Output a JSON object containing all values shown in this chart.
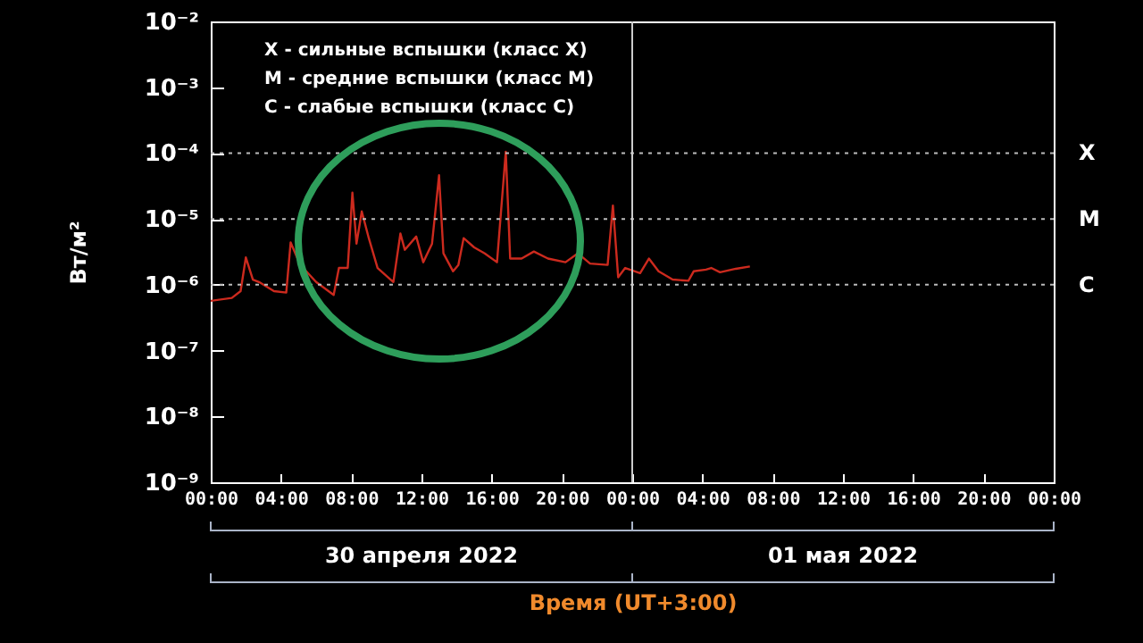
{
  "chart_data": {
    "type": "line",
    "xlabel": "Время (UT+3:00)",
    "ylabel": "Вт/м²",
    "annotations": [
      "X  - сильные вспышки (класс X)",
      "M  - средние вспышки (класс M)",
      "C  - слабые вспышки (класс C)",
      "30 апреля 2022",
      "01 мая 2022"
    ],
    "series": [
      {
        "color": "#cc2a1e",
        "x": [
          "2022-04-30T00:00",
          "2022-04-30T01:12",
          "2022-04-30T01:42",
          "2022-04-30T02:00",
          "2022-04-30T02:24",
          "2022-04-30T02:45",
          "2022-04-30T03:36",
          "2022-04-30T04:18",
          "2022-04-30T04:33",
          "2022-04-30T05:06",
          "2022-04-30T06:00",
          "2022-04-30T07:00",
          "2022-04-30T07:18",
          "2022-04-30T07:48",
          "2022-04-30T08:04",
          "2022-04-30T08:18",
          "2022-04-30T08:36",
          "2022-04-30T09:00",
          "2022-04-30T09:30",
          "2022-04-30T10:24",
          "2022-04-30T10:48",
          "2022-04-30T11:03",
          "2022-04-30T11:42",
          "2022-04-30T12:06",
          "2022-04-30T12:36",
          "2022-04-30T13:00",
          "2022-04-30T13:15",
          "2022-04-30T13:48",
          "2022-04-30T14:06",
          "2022-04-30T14:24",
          "2022-04-30T15:00",
          "2022-04-30T15:36",
          "2022-04-30T16:18",
          "2022-04-30T16:48",
          "2022-04-30T17:03",
          "2022-04-30T17:42",
          "2022-04-30T18:24",
          "2022-04-30T19:12",
          "2022-04-30T20:12",
          "2022-04-30T20:54",
          "2022-04-30T21:36",
          "2022-04-30T22:36",
          "2022-04-30T22:54",
          "2022-04-30T23:12",
          "2022-04-30T23:36",
          "2022-05-01T00:27",
          "2022-05-01T00:57",
          "2022-05-01T01:30",
          "2022-05-01T02:18",
          "2022-05-01T03:12",
          "2022-05-01T03:30",
          "2022-05-01T04:12",
          "2022-05-01T04:30",
          "2022-05-01T05:00",
          "2022-05-01T05:54",
          "2022-05-01T06:42"
        ],
        "values": [
          5.7e-07,
          6.3e-07,
          8e-07,
          2.6e-06,
          1.2e-06,
          1.1e-06,
          8e-07,
          7.6e-07,
          4.4e-06,
          2e-06,
          1.1e-06,
          7e-07,
          1.8e-06,
          1.8e-06,
          2.5e-05,
          4.2e-06,
          1.3e-05,
          5.1e-06,
          1.8e-06,
          1.1e-06,
          6e-06,
          3.4e-06,
          5.4e-06,
          2.2e-06,
          4.2e-06,
          4.6e-05,
          3e-06,
          1.6e-06,
          2e-06,
          5.1e-06,
          3.7e-06,
          3e-06,
          2.2e-06,
          0.000105,
          2.5e-06,
          2.5e-06,
          3.2e-06,
          2.5e-06,
          2.2e-06,
          3e-06,
          2.1e-06,
          2e-06,
          1.6e-05,
          1.3e-06,
          1.8e-06,
          1.5e-06,
          2.5e-06,
          1.6e-06,
          1.2e-06,
          1.15e-06,
          1.6e-06,
          1.7e-06,
          1.8e-06,
          1.55e-06,
          1.75e-06,
          1.9e-06
        ]
      }
    ],
    "log": true,
    "grid": false,
    "marker": "none",
    "line_style": "solid",
    "xlim": [
      "2022-04-30T00:00",
      "2022-05-02T00:00"
    ],
    "xticks": [
      {
        "value": "2022-04-30T00:00",
        "label": "00:00"
      },
      {
        "value": "2022-04-30T04:00",
        "label": "04:00"
      },
      {
        "value": "2022-04-30T08:00",
        "label": "08:00"
      },
      {
        "value": "2022-04-30T12:00",
        "label": "12:00"
      },
      {
        "value": "2022-04-30T16:00",
        "label": "16:00"
      },
      {
        "value": "2022-04-30T20:00",
        "label": "20:00"
      },
      {
        "value": "2022-05-01T00:00",
        "label": "00:00"
      },
      {
        "value": "2022-05-01T04:00",
        "label": "04:00"
      },
      {
        "value": "2022-05-01T08:00",
        "label": "08:00"
      },
      {
        "value": "2022-05-01T12:00",
        "label": "12:00"
      },
      {
        "value": "2022-05-01T16:00",
        "label": "16:00"
      },
      {
        "value": "2022-05-01T20:00",
        "label": "20:00"
      },
      {
        "value": "2022-05-02T00:00",
        "label": "00:00"
      }
    ],
    "ylim": [
      1e-09,
      0.01
    ],
    "yticks": [
      {
        "value": 1e-09,
        "label": "10⁻⁹"
      },
      {
        "value": 1e-08,
        "label": "10⁻⁸"
      },
      {
        "value": 1e-07,
        "label": "10⁻⁷"
      },
      {
        "value": 1e-06,
        "label": "10⁻⁶"
      },
      {
        "value": 1e-05,
        "label": "10⁻⁵"
      },
      {
        "value": 0.0001,
        "label": "10⁻⁴"
      },
      {
        "value": 0.001,
        "label": "10⁻³"
      },
      {
        "value": 0.01,
        "label": "10⁻²"
      }
    ],
    "ref_lines": [
      {
        "axis": "y",
        "value": 0.0001,
        "label": "X",
        "color": "#bbbbbb",
        "line_style": "dotted"
      },
      {
        "axis": "y",
        "value": 1e-05,
        "label": "M",
        "color": "#bbbbbb",
        "line_style": "dotted"
      },
      {
        "axis": "y",
        "value": 1e-06,
        "label": "C",
        "color": "#bbbbbb",
        "line_style": "dotted"
      },
      {
        "axis": "x",
        "value": "2022-05-01T00:00",
        "color": "#cccccc",
        "line_style": "solid"
      }
    ]
  }
}
